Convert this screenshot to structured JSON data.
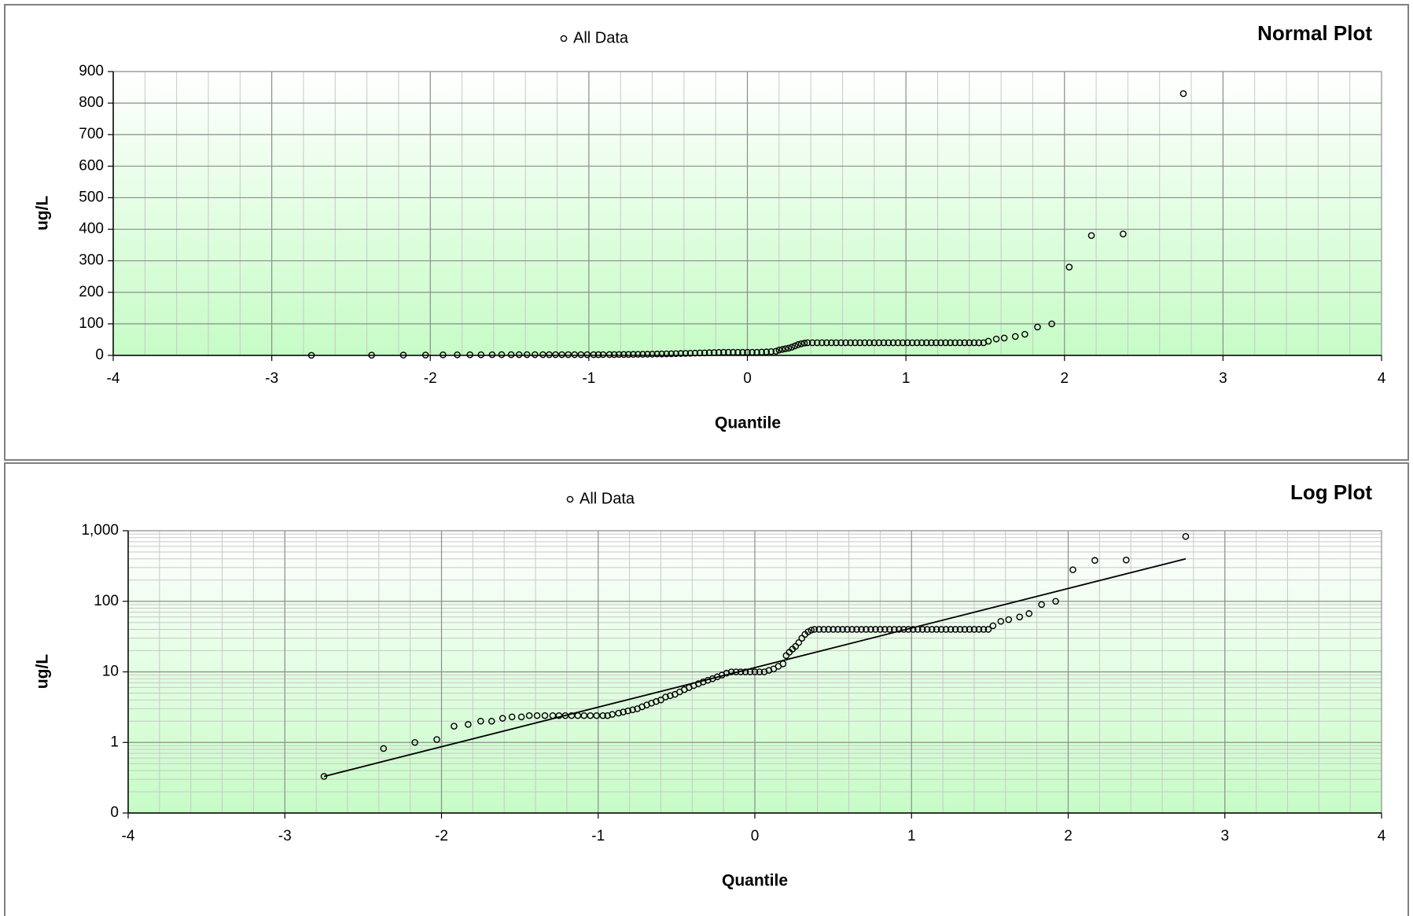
{
  "chart_data": [
    {
      "type": "scatter",
      "title": "Normal Plot",
      "xlabel": "Quantile",
      "ylabel": "ug/L",
      "xlim": [
        -4,
        4
      ],
      "xticks": [
        -4,
        -3,
        -2,
        -1,
        0,
        1,
        2,
        3,
        4
      ],
      "ylim": [
        0,
        900
      ],
      "yticks": [
        0,
        100,
        200,
        300,
        400,
        500,
        600,
        700,
        800,
        900
      ],
      "log_scale": false,
      "grid": true,
      "series": [
        {
          "name": "All Data",
          "color": "#000000",
          "x": [
            -2.75,
            -2.37,
            -2.17,
            -2.03,
            -1.92,
            -1.83,
            -1.75,
            -1.68,
            -1.61,
            -1.55,
            -1.49,
            -1.44,
            -1.39,
            -1.34,
            -1.29,
            -1.25,
            -1.21,
            -1.17,
            -1.13,
            -1.09,
            -1.05,
            -1.01,
            -0.97,
            -0.94,
            -0.91,
            -0.87,
            -0.84,
            -0.81,
            -0.78,
            -0.75,
            -0.72,
            -0.69,
            -0.66,
            -0.63,
            -0.6,
            -0.57,
            -0.54,
            -0.51,
            -0.48,
            -0.45,
            -0.42,
            -0.39,
            -0.36,
            -0.33,
            -0.3,
            -0.27,
            -0.24,
            -0.21,
            -0.18,
            -0.15,
            -0.12,
            -0.09,
            -0.06,
            -0.03,
            0,
            0.03,
            0.06,
            0.09,
            0.12,
            0.15,
            0.18,
            0.2,
            0.22,
            0.24,
            0.26,
            0.28,
            0.3,
            0.32,
            0.34,
            0.36,
            0.38,
            0.41,
            0.44,
            0.47,
            0.5,
            0.53,
            0.56,
            0.59,
            0.62,
            0.65,
            0.68,
            0.71,
            0.74,
            0.77,
            0.8,
            0.83,
            0.86,
            0.89,
            0.92,
            0.95,
            0.98,
            1.01,
            1.04,
            1.07,
            1.1,
            1.13,
            1.16,
            1.19,
            1.22,
            1.25,
            1.28,
            1.31,
            1.34,
            1.37,
            1.4,
            1.43,
            1.46,
            1.49,
            1.52,
            1.57,
            1.62,
            1.69,
            1.75,
            1.83,
            1.92,
            2.03,
            2.17,
            2.37,
            2.75
          ],
          "values": [
            0.33,
            0.82,
            1,
            1.1,
            1.7,
            1.8,
            2,
            2,
            2.2,
            2.3,
            2.3,
            2.4,
            2.4,
            2.4,
            2.4,
            2.4,
            2.4,
            2.4,
            2.4,
            2.4,
            2.4,
            2.4,
            2.4,
            2.4,
            2.5,
            2.6,
            2.7,
            2.8,
            2.9,
            3,
            3.2,
            3.4,
            3.6,
            3.8,
            4,
            4.4,
            4.6,
            4.8,
            5.2,
            5.6,
            6,
            6.4,
            6.8,
            7.2,
            7.6,
            8,
            8.5,
            9,
            9.6,
            10,
            10,
            10,
            10,
            10,
            10,
            10,
            10,
            10.5,
            11,
            12,
            13,
            17,
            19,
            21,
            23,
            26,
            30,
            34,
            37,
            39,
            40,
            40,
            40,
            40,
            40,
            40,
            40,
            40,
            40,
            40,
            40,
            40,
            40,
            40,
            40,
            40,
            40,
            40,
            40,
            40,
            40,
            40,
            40,
            40,
            40,
            40,
            40,
            40,
            40,
            40,
            40,
            40,
            40,
            40,
            40,
            40,
            40,
            40,
            45,
            52,
            55,
            60,
            67,
            90,
            100,
            280,
            380,
            385,
            830
          ]
        }
      ]
    },
    {
      "type": "scatter",
      "title": "Log Plot",
      "xlabel": "Quantile",
      "ylabel": "ug/L",
      "xlim": [
        -4,
        4
      ],
      "xticks": [
        -4,
        -3,
        -2,
        -1,
        0,
        1,
        2,
        3,
        4
      ],
      "ylim": [
        0.1,
        1000
      ],
      "yticks": [
        {
          "value": 0.1,
          "label": "0"
        },
        1,
        10,
        100,
        {
          "value": 1000,
          "label": "1,000"
        }
      ],
      "log_scale": true,
      "grid": true,
      "series": [
        {
          "name": "All Data",
          "color": "#000000",
          "x": [
            -2.75,
            -2.37,
            -2.17,
            -2.03,
            -1.92,
            -1.83,
            -1.75,
            -1.68,
            -1.61,
            -1.55,
            -1.49,
            -1.44,
            -1.39,
            -1.34,
            -1.29,
            -1.25,
            -1.21,
            -1.17,
            -1.13,
            -1.09,
            -1.05,
            -1.01,
            -0.97,
            -0.94,
            -0.91,
            -0.87,
            -0.84,
            -0.81,
            -0.78,
            -0.75,
            -0.72,
            -0.69,
            -0.66,
            -0.63,
            -0.6,
            -0.57,
            -0.54,
            -0.51,
            -0.48,
            -0.45,
            -0.42,
            -0.39,
            -0.36,
            -0.33,
            -0.3,
            -0.27,
            -0.24,
            -0.21,
            -0.18,
            -0.15,
            -0.12,
            -0.09,
            -0.06,
            -0.03,
            0,
            0.03,
            0.06,
            0.09,
            0.12,
            0.15,
            0.18,
            0.2,
            0.22,
            0.24,
            0.26,
            0.28,
            0.3,
            0.32,
            0.34,
            0.36,
            0.38,
            0.41,
            0.44,
            0.47,
            0.5,
            0.53,
            0.56,
            0.59,
            0.62,
            0.65,
            0.68,
            0.71,
            0.74,
            0.77,
            0.8,
            0.83,
            0.86,
            0.89,
            0.92,
            0.95,
            0.98,
            1.01,
            1.04,
            1.07,
            1.1,
            1.13,
            1.16,
            1.19,
            1.22,
            1.25,
            1.28,
            1.31,
            1.34,
            1.37,
            1.4,
            1.43,
            1.46,
            1.49,
            1.52,
            1.57,
            1.62,
            1.69,
            1.75,
            1.83,
            1.92,
            2.03,
            2.17,
            2.37,
            2.75
          ],
          "values": [
            0.33,
            0.82,
            1,
            1.1,
            1.7,
            1.8,
            2,
            2,
            2.2,
            2.3,
            2.3,
            2.4,
            2.4,
            2.4,
            2.4,
            2.4,
            2.4,
            2.4,
            2.4,
            2.4,
            2.4,
            2.4,
            2.4,
            2.4,
            2.5,
            2.6,
            2.7,
            2.8,
            2.9,
            3,
            3.2,
            3.4,
            3.6,
            3.8,
            4,
            4.4,
            4.6,
            4.8,
            5.2,
            5.6,
            6,
            6.4,
            6.8,
            7.2,
            7.6,
            8,
            8.5,
            9,
            9.6,
            10,
            10,
            10,
            10,
            10,
            10,
            10,
            10,
            10.5,
            11,
            12,
            13,
            17,
            19,
            21,
            23,
            26,
            30,
            34,
            37,
            39,
            40,
            40,
            40,
            40,
            40,
            40,
            40,
            40,
            40,
            40,
            40,
            40,
            40,
            40,
            40,
            40,
            40,
            40,
            40,
            40,
            40,
            40,
            40,
            40,
            40,
            40,
            40,
            40,
            40,
            40,
            40,
            40,
            40,
            40,
            40,
            40,
            40,
            40,
            45,
            52,
            55,
            60,
            67,
            90,
            100,
            280,
            380,
            385,
            830
          ]
        }
      ],
      "trendline": {
        "x": [
          -2.75,
          2.75
        ],
        "values": [
          0.33,
          400
        ],
        "color": "#000000"
      }
    }
  ]
}
